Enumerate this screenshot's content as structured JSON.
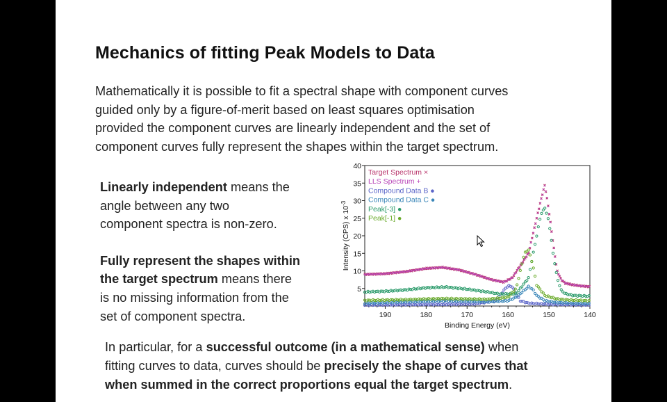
{
  "slide": {
    "title": "Mechanics of fitting Peak Models to Data",
    "intro_lines": [
      "Mathematically it is possible to fit a spectral shape with component curves",
      "guided only by a figure-of-merit based on least squares optimisation",
      "provided the component curves are linearly independent and the set of",
      "component curves fully represent the shapes within the target spectrum."
    ],
    "left": {
      "p1_bold": "Linearly independent",
      "p1_line1_rest": " means the",
      "p1_line2": "angle between any two",
      "p1_line3": "component spectra is non-zero.",
      "p2_line1_bold": "Fully represent the shapes within",
      "p2_line2_bold": "the target spectrum",
      "p2_line2_rest": " means there",
      "p2_line3": "is no missing information from the",
      "p2_line4": "set of component spectra."
    },
    "bottom": {
      "l1_pre": "In particular, for a ",
      "l1_bold": "successful outcome (in a mathematical sense)",
      "l1_post": " when",
      "l2_pre": "fitting curves to data, curves should be ",
      "l2_bold": "precisely the shape of curves that",
      "l3_bold": "when summed in the correct proportions equal the target spectrum",
      "l3_post": "."
    }
  },
  "chart_data": {
    "type": "scatter",
    "xlabel": "Binding Energy (eV)",
    "ylabel": "Intensity (CPS) x 10",
    "ylabel_exponent": "-3",
    "xlim": [
      195,
      140
    ],
    "ylim": [
      0,
      40
    ],
    "x_ticks": [
      190,
      180,
      170,
      160,
      150,
      140
    ],
    "y_ticks": [
      5,
      10,
      15,
      20,
      25,
      30,
      35,
      40
    ],
    "legend_position": "top-left",
    "series": [
      {
        "name": "Target Spectrum",
        "marker": "×",
        "color": "#b8336a",
        "x": [
          195,
          190,
          185,
          180,
          176,
          172,
          168,
          164,
          161,
          159,
          157,
          155,
          153,
          152,
          151,
          150,
          149,
          148,
          147,
          146,
          144,
          142,
          140
        ],
        "y": [
          9,
          9.2,
          9.8,
          10.7,
          11,
          10.3,
          9,
          7.5,
          6.8,
          8,
          11.5,
          15,
          25,
          30,
          34.5,
          27,
          18,
          10,
          7.5,
          6.5,
          6,
          5.7,
          5.5
        ]
      },
      {
        "name": "LLS Spectrum",
        "marker": "+",
        "color": "#b845b8",
        "x": [
          195,
          190,
          185,
          180,
          176,
          172,
          168,
          164,
          161,
          159,
          157,
          155,
          153,
          152,
          151,
          150,
          149,
          148,
          147,
          146,
          144,
          142,
          140
        ],
        "y": [
          9,
          9.2,
          9.8,
          10.7,
          11,
          10.3,
          9,
          7.5,
          6.8,
          8,
          11.5,
          15,
          25,
          30,
          34.5,
          27,
          18,
          10,
          7.5,
          6.5,
          6,
          5.7,
          5.5
        ]
      },
      {
        "name": "Compound Data B",
        "marker": "●",
        "color": "#5a64c8",
        "x": [
          195,
          185,
          175,
          168,
          163,
          161,
          160,
          159,
          158,
          157,
          155,
          150,
          145,
          140
        ],
        "y": [
          0.3,
          0.4,
          0.5,
          0.6,
          1.5,
          4.5,
          5.8,
          5.5,
          3.5,
          1.5,
          0.8,
          0.5,
          0.4,
          0.3
        ]
      },
      {
        "name": "Compound Data C",
        "marker": "●",
        "color": "#3a86b8",
        "x": [
          195,
          185,
          175,
          165,
          160,
          158,
          156,
          155,
          154,
          153,
          151,
          148,
          144,
          140
        ],
        "y": [
          0.8,
          1.2,
          1.5,
          1.2,
          1.5,
          2.5,
          4.5,
          5.5,
          4.8,
          3,
          1.5,
          1,
          0.8,
          0.7
        ]
      },
      {
        "name": "Peak[-3]",
        "marker": "●",
        "color": "#2a9a6a",
        "x": [
          195,
          190,
          185,
          180,
          175,
          170,
          165,
          162,
          158,
          155,
          153,
          152,
          151,
          150,
          149,
          148,
          147,
          146,
          144,
          140
        ],
        "y": [
          4,
          4.2,
          4.6,
          5.2,
          5.4,
          4.8,
          4,
          3.4,
          3.5,
          8,
          20,
          26,
          28,
          24,
          15,
          8,
          4.5,
          3.5,
          3,
          2.8
        ]
      },
      {
        "name": "Peak[-1]",
        "marker": "●",
        "color": "#6aaa2a",
        "x": [
          195,
          185,
          180,
          175,
          170,
          165,
          160,
          158,
          157,
          156,
          155,
          154,
          153,
          151,
          148,
          145,
          140
        ],
        "y": [
          1.6,
          1.8,
          2,
          2.1,
          2,
          1.9,
          2.5,
          5,
          10,
          15,
          16,
          12,
          6,
          3,
          2,
          1.7,
          1.5
        ]
      }
    ]
  }
}
